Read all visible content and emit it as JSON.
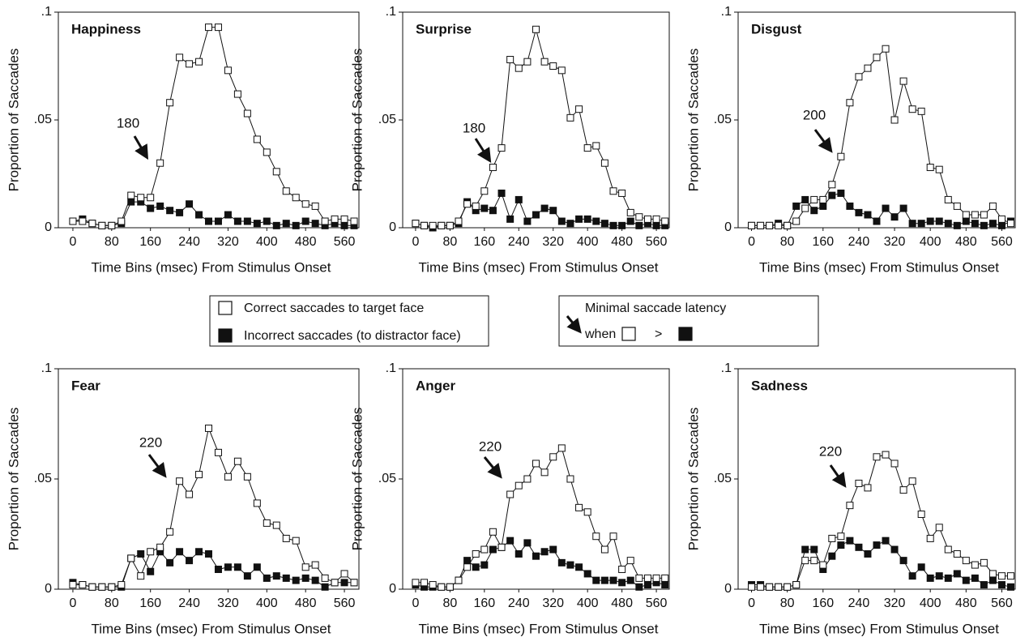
{
  "chart_data": [
    {
      "type": "line",
      "title": "Happiness",
      "xlabel": "Time Bins (msec) From Stimulus Onset",
      "ylabel": "Proportion of Saccades",
      "annotation": "180",
      "x": [
        0,
        20,
        40,
        60,
        80,
        100,
        120,
        140,
        160,
        180,
        200,
        220,
        240,
        260,
        280,
        300,
        320,
        340,
        360,
        380,
        400,
        420,
        440,
        460,
        480,
        500,
        520,
        540,
        560,
        580
      ],
      "xlim": [
        -30,
        590
      ],
      "xticks": [
        0,
        80,
        160,
        240,
        320,
        400,
        480,
        560
      ],
      "ylim": [
        0,
        0.1
      ],
      "yticks": [
        0,
        {
          "value": 0.05,
          "label": ".05"
        },
        {
          "value": 0.1,
          "label": ".1"
        }
      ],
      "series": [
        {
          "color": "#ffffff",
          "values": [
            0.003,
            0.003,
            0.002,
            0.001,
            0.001,
            0.003,
            0.015,
            0.014,
            0.014,
            0.03,
            0.058,
            0.079,
            0.076,
            0.077,
            0.093,
            0.093,
            0.073,
            0.062,
            0.053,
            0.041,
            0.035,
            0.026,
            0.017,
            0.014,
            0.011,
            0.01,
            0.003,
            0.004,
            0.004,
            0.003
          ]
        },
        {
          "color": "#111111",
          "values": [
            0.003,
            0.004,
            0.002,
            0.001,
            0.001,
            0.002,
            0.012,
            0.012,
            0.009,
            0.01,
            0.008,
            0.007,
            0.011,
            0.006,
            0.003,
            0.003,
            0.006,
            0.003,
            0.003,
            0.002,
            0.003,
            0.001,
            0.002,
            0.001,
            0.003,
            0.002,
            0.001,
            0.002,
            0.001,
            0.001
          ]
        }
      ]
    },
    {
      "type": "line",
      "title": "Surprise",
      "xlabel": "Time Bins (msec) From Stimulus Onset",
      "ylabel": "Proportion of Saccades",
      "annotation": "180",
      "x": [
        0,
        20,
        40,
        60,
        80,
        100,
        120,
        140,
        160,
        180,
        200,
        220,
        240,
        260,
        280,
        300,
        320,
        340,
        360,
        380,
        400,
        420,
        440,
        460,
        480,
        500,
        520,
        540,
        560,
        580
      ],
      "xlim": [
        -30,
        590
      ],
      "xticks": [
        0,
        80,
        160,
        240,
        320,
        400,
        480,
        560
      ],
      "ylim": [
        0,
        0.1
      ],
      "yticks": [
        0,
        {
          "value": 0.05,
          "label": ".05"
        },
        {
          "value": 0.1,
          "label": ".1"
        }
      ],
      "series": [
        {
          "color": "#ffffff",
          "values": [
            0.002,
            0.001,
            0.001,
            0.001,
            0.001,
            0.003,
            0.011,
            0.01,
            0.017,
            0.028,
            0.037,
            0.078,
            0.074,
            0.077,
            0.092,
            0.077,
            0.075,
            0.073,
            0.051,
            0.055,
            0.037,
            0.038,
            0.03,
            0.017,
            0.016,
            0.007,
            0.005,
            0.004,
            0.004,
            0.003
          ]
        },
        {
          "color": "#111111",
          "values": [
            0.002,
            0.001,
            0.0,
            0.001,
            0.001,
            0.002,
            0.012,
            0.008,
            0.009,
            0.008,
            0.016,
            0.004,
            0.013,
            0.003,
            0.006,
            0.009,
            0.008,
            0.003,
            0.002,
            0.004,
            0.004,
            0.003,
            0.002,
            0.001,
            0.001,
            0.003,
            0.001,
            0.002,
            0.001,
            0.001
          ]
        }
      ]
    },
    {
      "type": "line",
      "title": "Disgust",
      "xlabel": "Time Bins (msec) From Stimulus Onset",
      "ylabel": "Proportion of Saccades",
      "annotation": "200",
      "x": [
        0,
        20,
        40,
        60,
        80,
        100,
        120,
        140,
        160,
        180,
        200,
        220,
        240,
        260,
        280,
        300,
        320,
        340,
        360,
        380,
        400,
        420,
        440,
        460,
        480,
        500,
        520,
        540,
        560,
        580
      ],
      "xlim": [
        -30,
        590
      ],
      "xticks": [
        0,
        80,
        160,
        240,
        320,
        400,
        480,
        560
      ],
      "ylim": [
        0,
        0.1
      ],
      "yticks": [
        0,
        {
          "value": 0.05,
          "label": ".05"
        },
        {
          "value": 0.1,
          "label": ".1"
        }
      ],
      "series": [
        {
          "color": "#ffffff",
          "values": [
            0.001,
            0.001,
            0.001,
            0.001,
            0.001,
            0.003,
            0.009,
            0.013,
            0.013,
            0.02,
            0.033,
            0.058,
            0.07,
            0.074,
            0.079,
            0.083,
            0.05,
            0.068,
            0.055,
            0.054,
            0.028,
            0.027,
            0.013,
            0.01,
            0.006,
            0.006,
            0.006,
            0.01,
            0.004,
            0.002
          ]
        },
        {
          "color": "#111111",
          "values": [
            0.001,
            0.001,
            0.001,
            0.002,
            0.001,
            0.01,
            0.013,
            0.008,
            0.01,
            0.015,
            0.016,
            0.01,
            0.007,
            0.006,
            0.003,
            0.009,
            0.005,
            0.009,
            0.002,
            0.002,
            0.003,
            0.003,
            0.002,
            0.001,
            0.003,
            0.002,
            0.001,
            0.002,
            0.001,
            0.003
          ]
        }
      ]
    },
    {
      "type": "line",
      "title": "Fear",
      "xlabel": "Time Bins (msec) From Stimulus Onset",
      "ylabel": "Proportion of Saccades",
      "annotation": "220",
      "x": [
        0,
        20,
        40,
        60,
        80,
        100,
        120,
        140,
        160,
        180,
        200,
        220,
        240,
        260,
        280,
        300,
        320,
        340,
        360,
        380,
        400,
        420,
        440,
        460,
        480,
        500,
        520,
        540,
        560,
        580
      ],
      "xlim": [
        -30,
        590
      ],
      "xticks": [
        0,
        80,
        160,
        240,
        320,
        400,
        480,
        560
      ],
      "ylim": [
        0,
        0.1
      ],
      "yticks": [
        0,
        {
          "value": 0.05,
          "label": ".05"
        },
        {
          "value": 0.1,
          "label": ".1"
        }
      ],
      "series": [
        {
          "color": "#ffffff",
          "values": [
            0.002,
            0.002,
            0.001,
            0.001,
            0.001,
            0.002,
            0.014,
            0.006,
            0.017,
            0.019,
            0.026,
            0.049,
            0.043,
            0.052,
            0.073,
            0.062,
            0.051,
            0.058,
            0.051,
            0.039,
            0.03,
            0.029,
            0.023,
            0.022,
            0.01,
            0.011,
            0.005,
            0.003,
            0.007,
            0.003
          ]
        },
        {
          "color": "#111111",
          "values": [
            0.003,
            0.002,
            0.001,
            0.001,
            0.001,
            0.001,
            0.014,
            0.016,
            0.008,
            0.017,
            0.012,
            0.017,
            0.013,
            0.017,
            0.016,
            0.009,
            0.01,
            0.01,
            0.006,
            0.01,
            0.005,
            0.006,
            0.005,
            0.004,
            0.005,
            0.004,
            0.001,
            0.003,
            0.003,
            0.003
          ]
        }
      ]
    },
    {
      "type": "line",
      "title": "Anger",
      "xlabel": "Time Bins (msec) From Stimulus Onset",
      "ylabel": "Proportion of Saccades",
      "annotation": "220",
      "x": [
        0,
        20,
        40,
        60,
        80,
        100,
        120,
        140,
        160,
        180,
        200,
        220,
        240,
        260,
        280,
        300,
        320,
        340,
        360,
        380,
        400,
        420,
        440,
        460,
        480,
        500,
        520,
        540,
        560,
        580
      ],
      "xlim": [
        -30,
        590
      ],
      "xticks": [
        0,
        80,
        160,
        240,
        320,
        400,
        480,
        560
      ],
      "ylim": [
        0,
        0.1
      ],
      "yticks": [
        0,
        {
          "value": 0.05,
          "label": ".05"
        },
        {
          "value": 0.1,
          "label": ".1"
        }
      ],
      "series": [
        {
          "color": "#ffffff",
          "values": [
            0.003,
            0.003,
            0.002,
            0.001,
            0.001,
            0.004,
            0.01,
            0.016,
            0.018,
            0.026,
            0.019,
            0.043,
            0.047,
            0.05,
            0.057,
            0.053,
            0.06,
            0.064,
            0.05,
            0.037,
            0.035,
            0.024,
            0.018,
            0.024,
            0.009,
            0.013,
            0.005,
            0.005,
            0.005,
            0.005
          ]
        },
        {
          "color": "#111111",
          "values": [
            0.002,
            0.001,
            0.001,
            0.001,
            0.001,
            0.004,
            0.013,
            0.01,
            0.011,
            0.018,
            0.019,
            0.022,
            0.016,
            0.021,
            0.015,
            0.017,
            0.018,
            0.012,
            0.011,
            0.01,
            0.007,
            0.004,
            0.004,
            0.004,
            0.003,
            0.004,
            0.001,
            0.002,
            0.003,
            0.002
          ]
        }
      ]
    },
    {
      "type": "line",
      "title": "Sadness",
      "xlabel": "Time Bins (msec) From Stimulus Onset",
      "ylabel": "Proportion of Saccades",
      "annotation": "220",
      "x": [
        0,
        20,
        40,
        60,
        80,
        100,
        120,
        140,
        160,
        180,
        200,
        220,
        240,
        260,
        280,
        300,
        320,
        340,
        360,
        380,
        400,
        420,
        440,
        460,
        480,
        500,
        520,
        540,
        560,
        580
      ],
      "xlim": [
        -30,
        590
      ],
      "xticks": [
        0,
        80,
        160,
        240,
        320,
        400,
        480,
        560
      ],
      "ylim": [
        0,
        0.1
      ],
      "yticks": [
        0,
        {
          "value": 0.05,
          "label": ".05"
        },
        {
          "value": 0.1,
          "label": ".1"
        }
      ],
      "series": [
        {
          "color": "#ffffff",
          "values": [
            0.001,
            0.001,
            0.001,
            0.001,
            0.001,
            0.002,
            0.013,
            0.013,
            0.011,
            0.023,
            0.024,
            0.038,
            0.048,
            0.046,
            0.06,
            0.061,
            0.057,
            0.045,
            0.049,
            0.034,
            0.023,
            0.028,
            0.018,
            0.016,
            0.013,
            0.011,
            0.012,
            0.007,
            0.006,
            0.006
          ]
        },
        {
          "color": "#111111",
          "values": [
            0.002,
            0.002,
            0.001,
            0.001,
            0.001,
            0.002,
            0.018,
            0.018,
            0.009,
            0.015,
            0.02,
            0.022,
            0.019,
            0.016,
            0.02,
            0.022,
            0.018,
            0.013,
            0.006,
            0.01,
            0.005,
            0.006,
            0.005,
            0.007,
            0.004,
            0.005,
            0.002,
            0.004,
            0.002,
            0.001
          ]
        }
      ]
    }
  ],
  "legend": {
    "correct": "Correct saccades to target face",
    "incorrect": "Incorrect saccades (to distractor face)",
    "latency_line1": "Minimal  saccade latency",
    "latency_when": "when",
    "latency_gt": ">"
  }
}
